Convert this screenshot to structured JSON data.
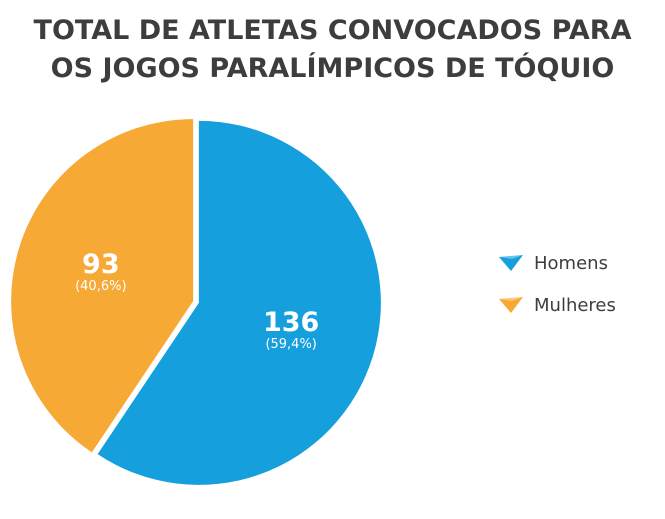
{
  "colors": {
    "homens": "#159fdc",
    "mulheres": "#f7a935",
    "title": "#3d3d3d"
  },
  "chart_data": {
    "type": "pie",
    "title": "TOTAL DE ATLETAS CONVOCADOS PARA OS JOGOS PARALÍMPICOS DE TÓQUIO",
    "title_lines": [
      "TOTAL DE ATLETAS CONVOCADOS PARA",
      "OS JOGOS PARALÍMPICOS DE TÓQUIO"
    ],
    "slices": [
      {
        "name": "Homens",
        "value": 136,
        "value_label": "136",
        "percent_label": "(59,4%)",
        "color": "#159fdc"
      },
      {
        "name": "Mulheres",
        "value": 93,
        "value_label": "93",
        "percent_label": "(40,6%)",
        "color": "#f7a935"
      }
    ],
    "legend_position": "right",
    "legend": [
      "Homens",
      "Mulheres"
    ]
  }
}
